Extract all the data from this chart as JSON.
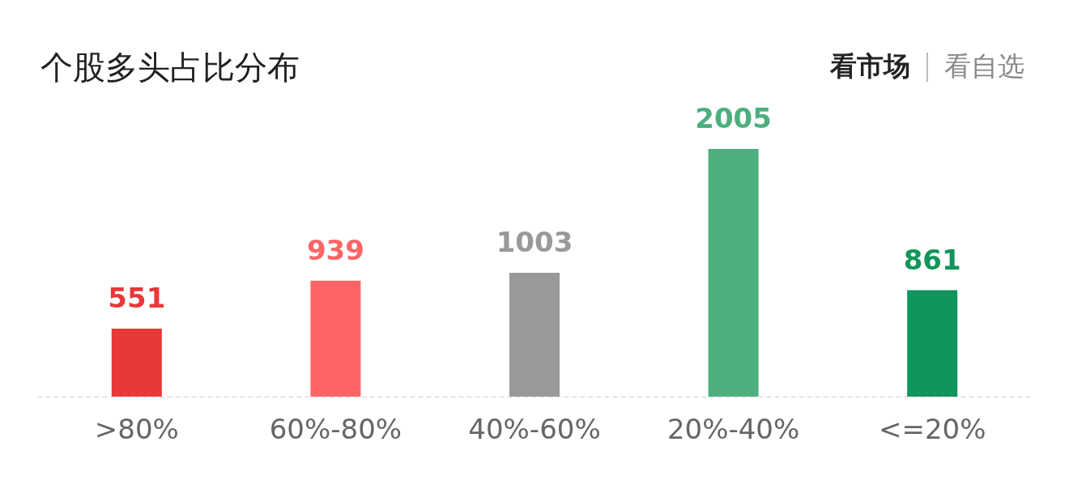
{
  "chart_data": {
    "type": "bar",
    "title": "个股多头占比分布",
    "annotations": [
      "看市场",
      "看自选"
    ],
    "categories": [
      ">80%",
      "60%-80%",
      "40%-60%",
      "20%-40%",
      "<=20%"
    ],
    "values": [
      551,
      939,
      1003,
      2005,
      861
    ],
    "colors": [
      "#e8383a",
      "#fd6565",
      "#999999",
      "#4caf7d",
      "#10955a"
    ],
    "data_labels": true,
    "grid": false,
    "legend": false
  }
}
